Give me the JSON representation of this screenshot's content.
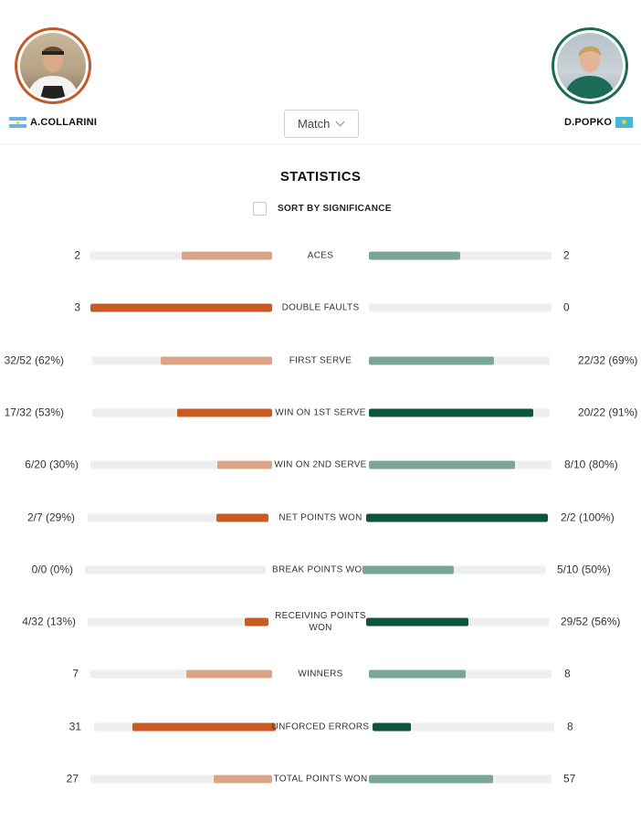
{
  "header": {
    "player_left": {
      "name": "A.COLLARINI",
      "flag": "argentina-flag",
      "ring_color": "#c25a27"
    },
    "player_right": {
      "name": "D.POPKO",
      "flag": "kazakhstan-flag",
      "ring_color": "#1f6b52"
    },
    "period_select": {
      "value": "Match"
    }
  },
  "statistics": {
    "title": "STATISTICS",
    "sort_label": "SORT BY SIGNIFICANCE",
    "sort_checked": false,
    "colors": {
      "left_strong": "#c85a22",
      "left_light": "#dca486",
      "right_strong": "#0e5540",
      "right_light": "#7aa698",
      "track": "#eeeeee"
    },
    "rows": [
      {
        "label": "ACES",
        "left": "2",
        "right": "2",
        "left_frac": 0.5,
        "right_frac": 0.5,
        "strong": "none"
      },
      {
        "label": "DOUBLE FAULTS",
        "left": "3",
        "right": "0",
        "left_frac": 1.0,
        "right_frac": 0.0,
        "strong": "left"
      },
      {
        "label": "FIRST SERVE",
        "left": "32/52 (62%)",
        "right": "22/32 (69%)",
        "left_frac": 0.62,
        "right_frac": 0.69,
        "strong": "none"
      },
      {
        "label": "WIN ON 1ST SERVE",
        "left": "17/32 (53%)",
        "right": "20/22 (91%)",
        "left_frac": 0.53,
        "right_frac": 0.91,
        "strong": "both"
      },
      {
        "label": "WIN ON 2ND SERVE",
        "left": "6/20 (30%)",
        "right": "8/10 (80%)",
        "left_frac": 0.3,
        "right_frac": 0.8,
        "strong": "none"
      },
      {
        "label": "NET POINTS WON",
        "left": "2/7 (29%)",
        "right": "2/2 (100%)",
        "left_frac": 0.29,
        "right_frac": 1.0,
        "strong": "both"
      },
      {
        "label": "BREAK POINTS WON",
        "left": "0/0 (0%)",
        "right": "5/10 (50%)",
        "left_frac": 0.0,
        "right_frac": 0.5,
        "strong": "none"
      },
      {
        "label": "RECEIVING POINTS WON",
        "left": "4/32 (13%)",
        "right": "29/52 (56%)",
        "left_frac": 0.13,
        "right_frac": 0.56,
        "strong": "both"
      },
      {
        "label": "WINNERS",
        "left": "7",
        "right": "8",
        "left_frac": 0.47,
        "right_frac": 0.53,
        "strong": "none"
      },
      {
        "label": "UNFORCED ERRORS",
        "left": "31",
        "right": "8",
        "left_frac": 0.79,
        "right_frac": 0.21,
        "strong": "both"
      },
      {
        "label": "TOTAL POINTS WON",
        "left": "27",
        "right": "57",
        "left_frac": 0.32,
        "right_frac": 0.68,
        "strong": "none"
      }
    ]
  }
}
